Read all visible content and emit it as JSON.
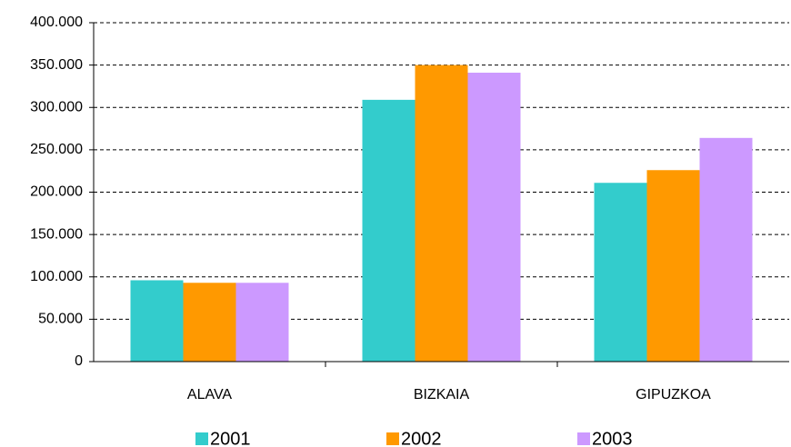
{
  "chart_data": {
    "type": "bar",
    "categories": [
      "ALAVA",
      "BIZKAIA",
      "GIPUZKOA"
    ],
    "series": [
      {
        "name": "2001",
        "color": "#33cccc",
        "values": [
          96000,
          309000,
          211000
        ]
      },
      {
        "name": "2002",
        "color": "#ff9900",
        "values": [
          93000,
          350000,
          226000
        ]
      },
      {
        "name": "2003",
        "color": "#cc99ff",
        "values": [
          93000,
          341000,
          264000
        ]
      }
    ],
    "ylim": [
      0,
      400000
    ],
    "yticks": [
      0,
      {
        "value": 50000,
        "label": "50.000"
      },
      {
        "value": 100000,
        "label": "100.000"
      },
      {
        "value": 150000,
        "label": "150.000"
      },
      {
        "value": 200000,
        "label": "200.000"
      },
      {
        "value": 250000,
        "label": "250.000"
      },
      {
        "value": 300000,
        "label": "300.000"
      },
      {
        "value": 350000,
        "label": "350.000"
      },
      {
        "value": 400000,
        "label": "400.000"
      }
    ],
    "grid": true,
    "legend": "bottom"
  }
}
